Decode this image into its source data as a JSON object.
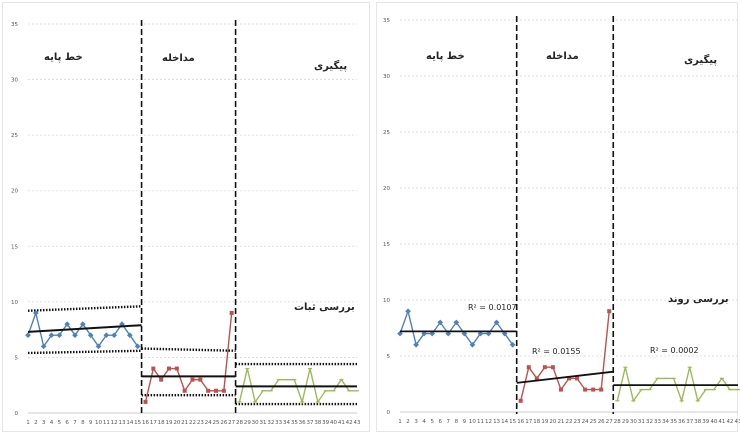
{
  "chart_data": [
    {
      "type": "line",
      "title": "",
      "ylim": [
        0,
        35
      ],
      "yticks": [
        0,
        5,
        10,
        15,
        20,
        25,
        30,
        35
      ],
      "grid": true,
      "x": [
        1,
        2,
        3,
        4,
        5,
        6,
        7,
        8,
        9,
        10,
        11,
        12,
        13,
        14,
        15,
        16,
        17,
        18,
        19,
        20,
        21,
        22,
        23,
        24,
        25,
        26,
        27,
        28,
        29,
        30,
        31,
        32,
        33,
        34,
        35,
        36,
        37,
        38,
        39,
        40,
        41,
        42,
        43
      ],
      "phase_boundaries": [
        15.5,
        27.5
      ],
      "phases": [
        {
          "label": "خط پایه",
          "color": "#4f81bd",
          "x_start": 1,
          "values": [
            7,
            9,
            6,
            7,
            7,
            8,
            7,
            8,
            7,
            6,
            7,
            7,
            8,
            7,
            6
          ]
        },
        {
          "label": "مداخله",
          "color": "#c0504d",
          "x_start": 16,
          "values": [
            1,
            4,
            3,
            4,
            4,
            2,
            3,
            3,
            2,
            2,
            2,
            9
          ]
        },
        {
          "label": "پیگیری",
          "color": "#9bbb59",
          "x_start": 28,
          "values": [
            1,
            4,
            1,
            2,
            2,
            3,
            3,
            3,
            1,
            4,
            1,
            2,
            2,
            3,
            2,
            2
          ]
        }
      ],
      "level_lines": [
        {
          "x": [
            1,
            15.5
          ],
          "y": [
            7.3,
            7.9
          ]
        },
        {
          "x": [
            15.5,
            27.5
          ],
          "y": [
            3.3,
            3.3
          ]
        },
        {
          "x": [
            27.5,
            43
          ],
          "y": [
            2.4,
            2.4
          ]
        }
      ],
      "stability_bands": [
        {
          "x": [
            1,
            15.5
          ],
          "upper": [
            9.2,
            9.6
          ],
          "lower": [
            5.4,
            5.6
          ]
        },
        {
          "x": [
            15.5,
            27.5
          ],
          "upper": [
            5.8,
            5.6
          ],
          "lower": [
            1.6,
            1.6
          ]
        },
        {
          "x": [
            27.5,
            43
          ],
          "upper": [
            4.4,
            4.4
          ],
          "lower": [
            0.8,
            0.8
          ]
        }
      ],
      "annotation": "بررسی ثبات"
    },
    {
      "type": "line",
      "title": "",
      "ylim": [
        0,
        35
      ],
      "yticks": [
        0,
        5,
        10,
        15,
        20,
        25,
        30,
        35
      ],
      "grid": true,
      "x": [
        1,
        2,
        3,
        4,
        5,
        6,
        7,
        8,
        9,
        10,
        11,
        12,
        13,
        14,
        15,
        16,
        17,
        18,
        19,
        20,
        21,
        22,
        23,
        24,
        25,
        26,
        27,
        28,
        29,
        30,
        31,
        32,
        33,
        34,
        35,
        36,
        37,
        38,
        39,
        40,
        41,
        42,
        43
      ],
      "phase_boundaries": [
        15.5,
        27.5
      ],
      "phases": [
        {
          "label": "خط پایه",
          "color": "#4f81bd",
          "x_start": 1,
          "values": [
            7,
            9,
            6,
            7,
            7,
            8,
            7,
            8,
            7,
            6,
            7,
            7,
            8,
            7,
            6
          ]
        },
        {
          "label": "مداخله",
          "color": "#c0504d",
          "x_start": 16,
          "values": [
            1,
            4,
            3,
            4,
            4,
            2,
            3,
            3,
            2,
            2,
            2,
            9
          ]
        },
        {
          "label": "پیگیری",
          "color": "#9bbb59",
          "x_start": 28,
          "values": [
            1,
            4,
            1,
            2,
            2,
            3,
            3,
            3,
            1,
            4,
            1,
            2,
            2,
            3,
            2,
            2
          ]
        }
      ],
      "trend_lines": [
        {
          "x": [
            1,
            15.5
          ],
          "y": [
            7.2,
            7.2
          ],
          "r2_label": "R² = 0.0107"
        },
        {
          "x": [
            15.5,
            27.5
          ],
          "y": [
            2.6,
            3.6
          ],
          "r2_label": "R² = 0.0155"
        },
        {
          "x": [
            27.5,
            43
          ],
          "y": [
            2.4,
            2.4
          ],
          "r2_label": "R² = 0.0002"
        }
      ],
      "annotation": "بررسی روند"
    }
  ]
}
